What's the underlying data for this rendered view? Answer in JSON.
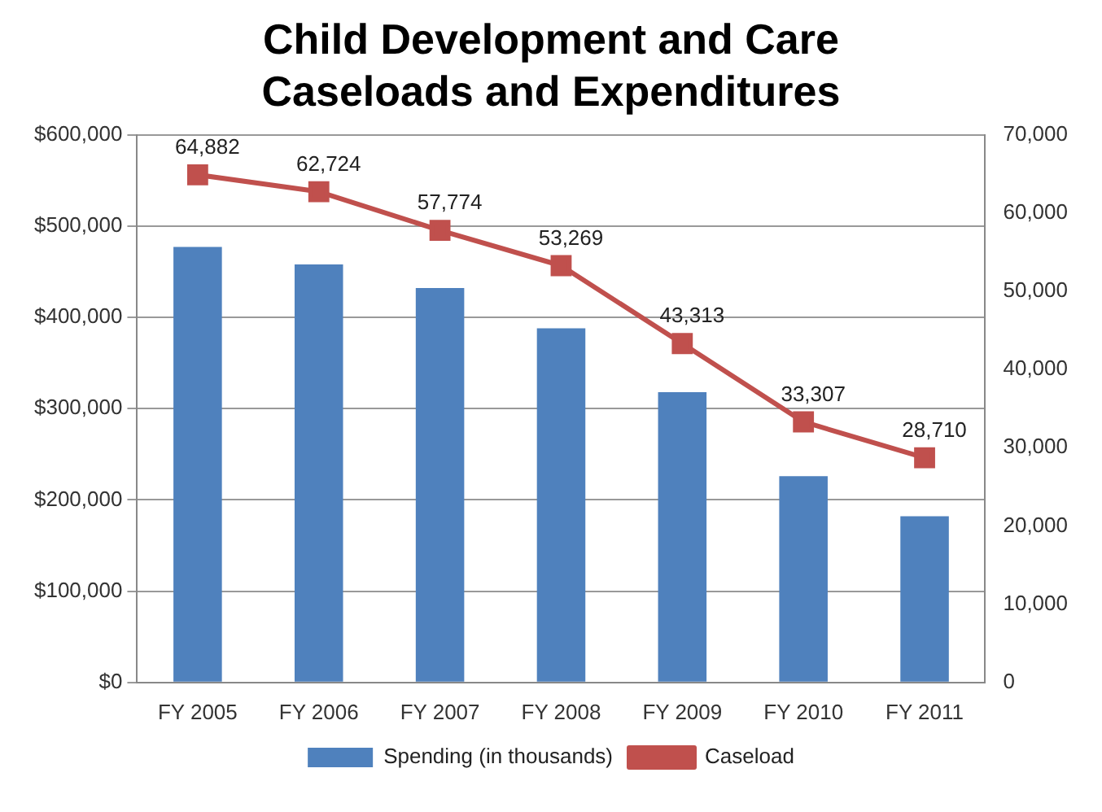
{
  "chart_data": {
    "type": "bar",
    "title": "Child Development and Care Caseloads and Expenditures",
    "categories": [
      "FY 2005",
      "FY 2006",
      "FY 2007",
      "FY 2008",
      "FY 2009",
      "FY 2010",
      "FY 2011"
    ],
    "series": [
      {
        "name": "Spending (in thousands)",
        "color": "#4f81bd",
        "values": [
          477000,
          458000,
          432000,
          388000,
          318000,
          226000,
          182000
        ]
      },
      {
        "name": "Caseload",
        "type": "line",
        "axis": "y2",
        "color": "#c0504d",
        "marker": "square",
        "values": [
          64882,
          62724,
          57774,
          53269,
          43313,
          33307,
          28710
        ],
        "value_labels": [
          "64,882",
          "62,724",
          "57,774",
          "53,269",
          "43,313",
          "33,307",
          "28,710"
        ]
      }
    ],
    "ylim": [
      0,
      600000
    ],
    "yticks": [
      {
        "value": 0,
        "label": "$0"
      },
      {
        "value": 100000,
        "label": "$100,000"
      },
      {
        "value": 200000,
        "label": "$200,000"
      },
      {
        "value": 300000,
        "label": "$300,000"
      },
      {
        "value": 400000,
        "label": "$400,000"
      },
      {
        "value": 500000,
        "label": "$500,000"
      },
      {
        "value": 600000,
        "label": "$600,000"
      }
    ],
    "y2lim": [
      0,
      70000
    ],
    "y2ticks": [
      0,
      {
        "value": 10000,
        "label": "10,000"
      },
      {
        "value": 20000,
        "label": "20,000"
      },
      {
        "value": 30000,
        "label": "30,000"
      },
      {
        "value": 40000,
        "label": "40,000"
      },
      {
        "value": 50000,
        "label": "50,000"
      },
      {
        "value": 60000,
        "label": "60,000"
      },
      {
        "value": 70000,
        "label": "70,000"
      }
    ],
    "grid": "y",
    "legend": "bottom"
  }
}
